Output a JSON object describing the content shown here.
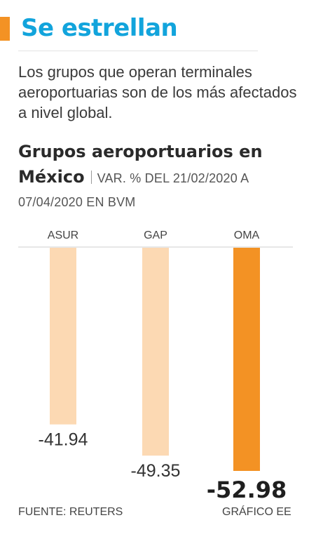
{
  "headline": "Se estrellan",
  "intro": "Los grupos que operan terminales aeroportuarias son de los más afectados a nivel global.",
  "colors": {
    "accent": "#f39224",
    "headline": "#12a4dc",
    "bar_light": "#fcd9b3",
    "bar_highlight": "#f39224"
  },
  "chart_data": {
    "type": "bar",
    "title": "Grupos aeroportuarios en México",
    "subtitle": "VAR. % DEL 21/02/2020 A 07/04/2020 EN BVM",
    "categories": [
      "ASUR",
      "GAP",
      "OMA"
    ],
    "values": [
      -41.94,
      -49.35,
      -52.98
    ],
    "value_labels": [
      "-41.94",
      "-49.35",
      "-52.98"
    ],
    "highlight": "OMA",
    "xlabel": "",
    "ylabel": "",
    "ylim": [
      -52.98,
      0
    ],
    "grid": false,
    "legend": "none"
  },
  "footer": {
    "source": "FUENTE: REUTERS",
    "credit": "GRÁFICO EE"
  }
}
